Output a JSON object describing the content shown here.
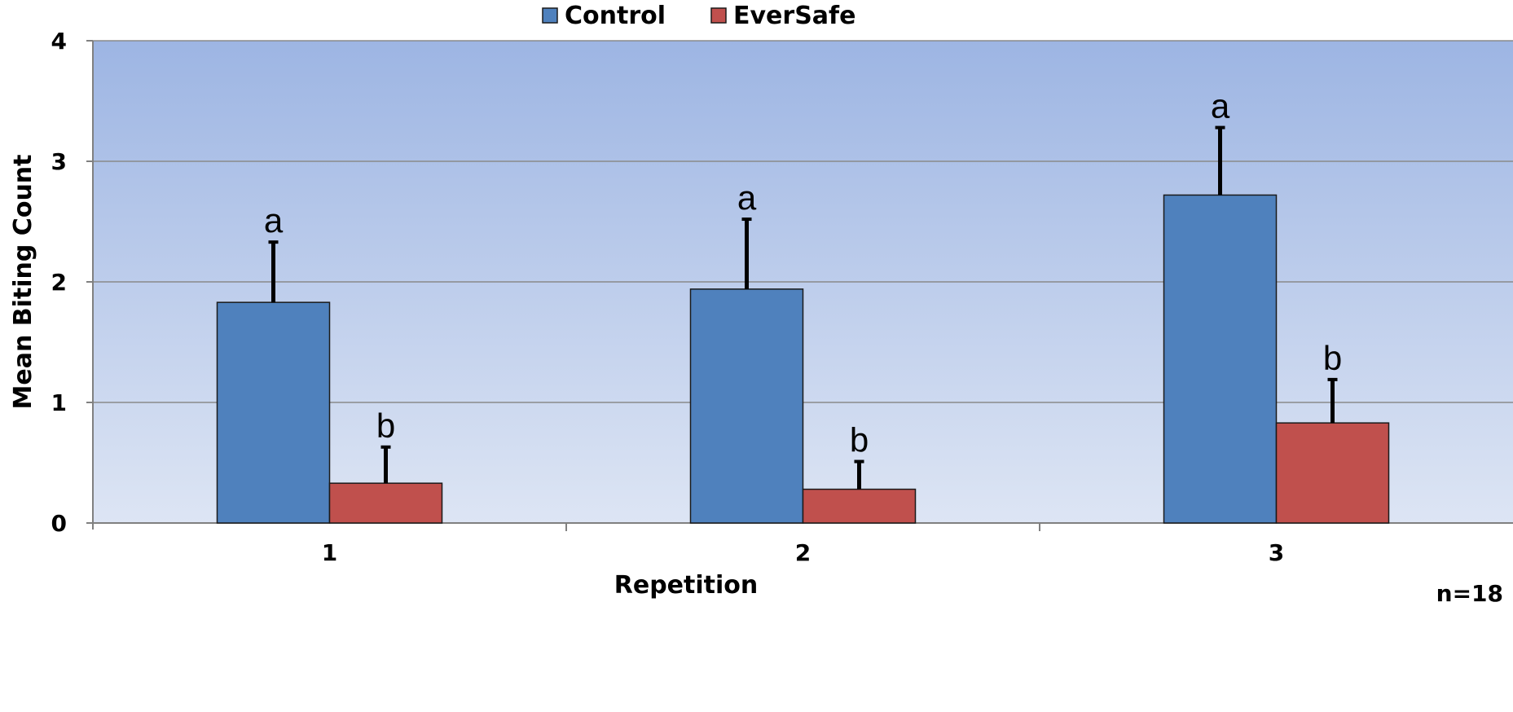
{
  "chart_data": {
    "type": "bar",
    "title": "",
    "xlabel": "Repetition",
    "ylabel": "Mean Biting Count",
    "categories": [
      "1",
      "2",
      "3"
    ],
    "ylim": [
      0,
      4
    ],
    "yticks": [
      "0",
      "1",
      "2",
      "3",
      "4"
    ],
    "grid": true,
    "legend_position": "top",
    "series": [
      {
        "name": "Control",
        "color": "#4f81bd",
        "values": [
          1.83,
          1.94,
          2.72
        ],
        "error": [
          0.5,
          0.58,
          0.56
        ],
        "significance": [
          "a",
          "a",
          "a"
        ]
      },
      {
        "name": "EverSafe",
        "color": "#c0504d",
        "values": [
          0.33,
          0.28,
          0.83
        ],
        "error": [
          0.3,
          0.23,
          0.36
        ],
        "significance": [
          "b",
          "b",
          "b"
        ]
      }
    ],
    "annotation": "n=18",
    "plot_background": {
      "top": "#9db5e3",
      "bottom": "#dde5f4"
    }
  }
}
